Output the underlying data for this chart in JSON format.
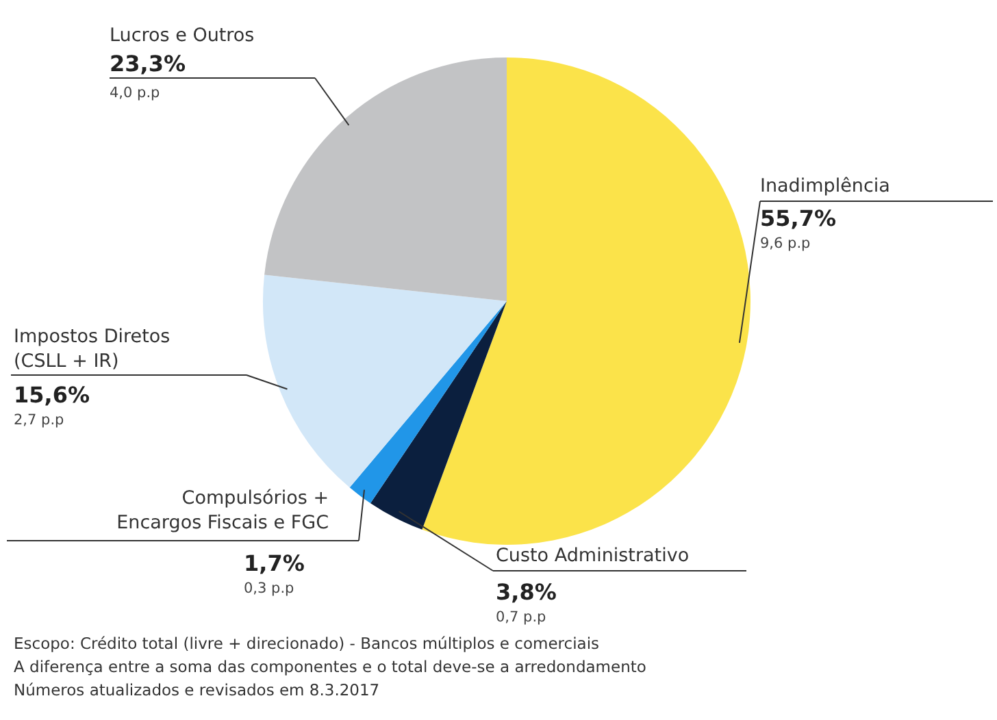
{
  "chart_data": {
    "type": "pie",
    "categories": [
      "Inadimplência",
      "Custo Administrativo",
      "Compulsórios + Encargos Fiscais e FGC",
      "Impostos Diretos (CSLL + IR)",
      "Lucros e Outros"
    ],
    "values": [
      55.7,
      3.8,
      1.7,
      15.6,
      23.3
    ],
    "colors": [
      "#fbe34a",
      "#0b1f3e",
      "#2196e8",
      "#d2e7f8",
      "#c2c3c5"
    ],
    "value_labels": [
      "55,7%",
      "3,8%",
      "1,7%",
      "15,6%",
      "23,3%"
    ],
    "legend": false,
    "annotations": [
      {
        "text": "9,6 p.p",
        "x": "Inadimplência"
      },
      {
        "text": "0,7 p.p",
        "x": "Custo Administrativo"
      },
      {
        "text": "0,3 p.p",
        "x": "Compulsórios + Encargos Fiscais e FGC"
      },
      {
        "text": "2,7 p.p",
        "x": "Impostos Diretos (CSLL + IR)"
      },
      {
        "text": "4,0 p.p",
        "x": "Lucros e Outros"
      },
      "Escopo: Crédito total (livre + direcionado) - Bancos múltiplos e comerciais",
      "A diferença entre a soma das componentes e o total deve-se a arredondamento",
      "Números atualizados e revisados em 8.3.2017"
    ]
  }
}
